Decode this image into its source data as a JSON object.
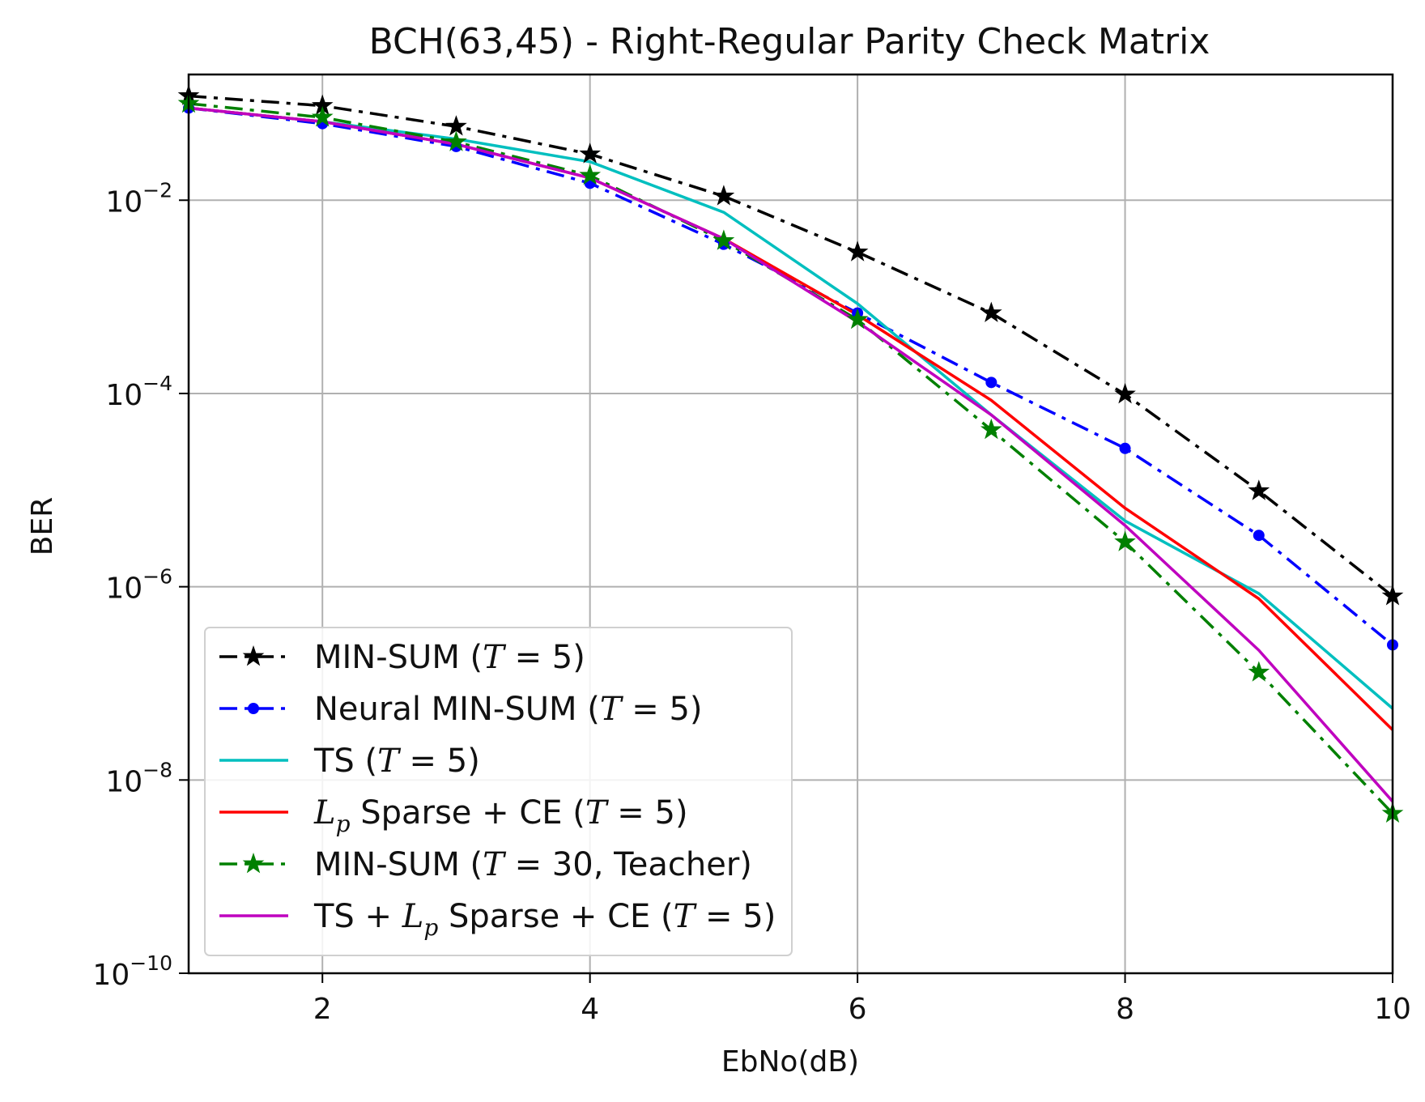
{
  "chart_data": {
    "type": "line",
    "title": "BCH(63,45) - Right-Regular Parity Check Matrix",
    "xlabel": "EbNo(dB)",
    "ylabel": "BER",
    "xlim": [
      1,
      10
    ],
    "ylim": [
      1e-10,
      0.2
    ],
    "yscale": "log",
    "grid": true,
    "legend_position": "lower-left",
    "x": [
      1,
      2,
      3,
      4,
      5,
      6,
      7,
      8,
      9,
      10
    ],
    "x_ticks": [
      2,
      4,
      6,
      8,
      10
    ],
    "y_ticks": [
      {
        "base": "10",
        "exp": "−2",
        "value": 0.01
      },
      {
        "base": "10",
        "exp": "−4",
        "value": 0.0001
      },
      {
        "base": "10",
        "exp": "−6",
        "value": 1e-06
      },
      {
        "base": "10",
        "exp": "−8",
        "value": 1e-08
      },
      {
        "base": "10",
        "exp": "−10",
        "value": 1e-10
      }
    ],
    "series": [
      {
        "legend": [
          {
            "t": "MIN-SUM ("
          },
          {
            "t": "T",
            "it": true
          },
          {
            "t": " = 5)"
          }
        ],
        "color": "#000000",
        "dash": "dashdot",
        "marker": "star",
        "values": [
          0.12,
          0.095,
          0.058,
          0.03,
          0.011,
          0.0029,
          0.00068,
          9.8e-05,
          9.8e-06,
          8e-07
        ]
      },
      {
        "legend": [
          {
            "t": "Neural MIN-SUM ("
          },
          {
            "t": "T",
            "it": true
          },
          {
            "t": " = 5)"
          }
        ],
        "color": "#0000ff",
        "dash": "dashdot",
        "marker": "dot",
        "values": [
          0.09,
          0.062,
          0.036,
          0.015,
          0.0035,
          0.00068,
          0.00013,
          2.7e-05,
          3.4e-06,
          2.5e-07
        ]
      },
      {
        "legend": [
          {
            "t": "TS ("
          },
          {
            "t": "T",
            "it": true
          },
          {
            "t": " = 5)"
          }
        ],
        "color": "#00bfbf",
        "dash": "solid",
        "marker": "none",
        "values": [
          0.09,
          0.065,
          0.043,
          0.025,
          0.0075,
          0.00085,
          6e-05,
          4.8e-06,
          8.5e-07,
          5.5e-08
        ]
      },
      {
        "legend": [
          {
            "t": "L",
            "it": true
          },
          {
            "t": "p",
            "it": true,
            "sub": true
          },
          {
            "t": " Sparse + CE ("
          },
          {
            "t": "T",
            "it": true
          },
          {
            "t": " = 5)"
          }
        ],
        "color": "#ff0000",
        "dash": "solid",
        "marker": "none",
        "values": [
          0.09,
          0.065,
          0.038,
          0.017,
          0.004,
          0.00065,
          8.5e-05,
          6.5e-06,
          7.5e-07,
          3.3e-08
        ]
      },
      {
        "legend": [
          {
            "t": "MIN-SUM ("
          },
          {
            "t": "T",
            "it": true
          },
          {
            "t": " = 30, Teacher)"
          }
        ],
        "color": "#008000",
        "dash": "dashdot",
        "marker": "star",
        "values": [
          0.1,
          0.072,
          0.04,
          0.018,
          0.0038,
          0.00058,
          4.2e-05,
          2.9e-06,
          1.3e-07,
          4.5e-09
        ]
      },
      {
        "legend": [
          {
            "t": "TS + "
          },
          {
            "t": "L",
            "it": true
          },
          {
            "t": "p",
            "it": true,
            "sub": true
          },
          {
            "t": " Sparse + CE ("
          },
          {
            "t": "T",
            "it": true
          },
          {
            "t": " = 5)"
          }
        ],
        "color": "#bf00bf",
        "dash": "solid",
        "marker": "none",
        "values": [
          0.09,
          0.065,
          0.038,
          0.017,
          0.004,
          0.00055,
          6e-05,
          4.3e-06,
          2.2e-07,
          6e-09
        ]
      }
    ]
  }
}
